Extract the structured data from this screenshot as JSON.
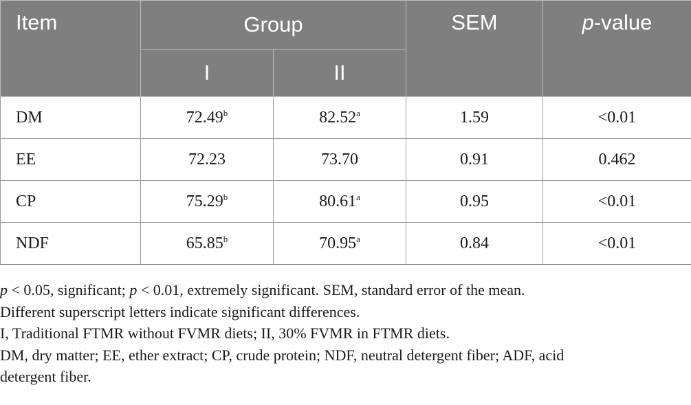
{
  "header": {
    "item": "Item",
    "group": "Group",
    "sem": "SEM",
    "p_italic": "p",
    "p_rest": "-value",
    "group_i": "I",
    "group_ii": "II"
  },
  "rows": [
    {
      "item": "DM",
      "g1": "72.49",
      "g1_sup": "b",
      "g2": "82.52",
      "g2_sup": "a",
      "sem": "1.59",
      "p": "<0.01"
    },
    {
      "item": "EE",
      "g1": "72.23",
      "g1_sup": "",
      "g2": "73.70",
      "g2_sup": "",
      "sem": "0.91",
      "p": "0.462"
    },
    {
      "item": "CP",
      "g1": "75.29",
      "g1_sup": "b",
      "g2": "80.61",
      "g2_sup": "a",
      "sem": "0.95",
      "p": "<0.01"
    },
    {
      "item": "NDF",
      "g1": "65.85",
      "g1_sup": "b",
      "g2": "70.95",
      "g2_sup": "a",
      "sem": "0.84",
      "p": "<0.01"
    }
  ],
  "notes": {
    "n1_p1": "p",
    "n1_t1": " < 0.05, significant; ",
    "n1_p2": "p",
    "n1_t2": " < 0.01, extremely significant. SEM, standard error of the mean.",
    "n2": "Different superscript letters indicate significant differences.",
    "n3": "I, Traditional FTMR without FVMR diets; II, 30% FVMR in FTMR diets.",
    "n4": "DM, dry matter; EE, ether extract; CP, crude protein; NDF, neutral detergent fiber; ADF, acid",
    "n5": "detergent fiber."
  }
}
